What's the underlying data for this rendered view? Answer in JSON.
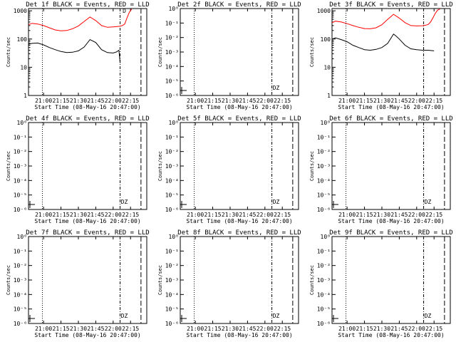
{
  "figure": {
    "colors": {
      "events": "#000000",
      "lld": "#ff0000",
      "axes": "#000000",
      "background": "#ffffff"
    }
  },
  "chart_data": [
    {
      "type": "line",
      "title": "Det 1f BLACK = Events, RED = LLD",
      "xlabel": "Start Time (08-May-16 20:47:00)",
      "ylabel": "Counts/sec",
      "x_ticks": [
        "21:00",
        "21:15",
        "21:30",
        "21:45",
        "22:00",
        "22:15"
      ],
      "y_scale": "log",
      "ylim": [
        1,
        1200
      ],
      "y_ticks": [
        "1",
        "10",
        "100",
        "1000"
      ],
      "xlim": [
        "20:47",
        "22:29"
      ],
      "grid": false,
      "marker_label": "D",
      "series": [
        {
          "name": "LLD",
          "color": "#ff0000",
          "x": [
            "20:47",
            "20:50",
            "20:55",
            "21:00",
            "21:05",
            "21:10",
            "21:15",
            "21:20",
            "21:25",
            "21:30",
            "21:35",
            "21:40",
            "21:45",
            "21:50",
            "21:55",
            "22:00",
            "22:05",
            "22:08",
            "22:10",
            "22:12",
            "22:14",
            "22:16"
          ],
          "y": [
            320,
            360,
            340,
            300,
            250,
            210,
            195,
            200,
            230,
            290,
            420,
            600,
            450,
            300,
            260,
            270,
            280,
            300,
            340,
            560,
            900,
            1150
          ]
        },
        {
          "name": "Events",
          "color": "#000000",
          "x": [
            "20:47",
            "20:50",
            "20:55",
            "21:00",
            "21:05",
            "21:10",
            "21:15",
            "21:20",
            "21:25",
            "21:30",
            "21:35",
            "21:40",
            "21:45",
            "21:50",
            "21:55",
            "22:00",
            "22:03",
            "22:05",
            "22:06"
          ],
          "y": [
            65,
            70,
            72,
            62,
            50,
            42,
            36,
            33,
            34,
            38,
            52,
            95,
            75,
            42,
            33,
            32,
            35,
            40,
            14
          ]
        }
      ]
    },
    {
      "type": "line",
      "title": "Det 2f BLACK = Events, RED = LLD",
      "xlabel": "Start Time (08-May-16 20:47:00)",
      "ylabel": "Counts/sec",
      "x_ticks": [
        "21:00",
        "21:15",
        "21:30",
        "21:45",
        "22:00",
        "22:15"
      ],
      "y_scale": "log",
      "y_ticks": [
        "10⁻⁶",
        "10⁻⁵",
        "10⁻⁴",
        "10⁻³",
        "10⁻²",
        "10⁻¹",
        "10⁰"
      ],
      "xlim": [
        "20:47",
        "22:29"
      ],
      "grid": false,
      "marker_label": "DZ",
      "series": []
    },
    {
      "type": "line",
      "title": "Det 3f BLACK = Events, RED = LLD",
      "xlabel": "Start Time (08-May-16 20:47:00)",
      "ylabel": "Counts/sec",
      "x_ticks": [
        "21:00",
        "21:15",
        "21:30",
        "21:45",
        "22:00",
        "22:15"
      ],
      "y_scale": "log",
      "ylim": [
        1,
        1200
      ],
      "y_ticks": [
        "1",
        "10",
        "100",
        "1000"
      ],
      "xlim": [
        "20:47",
        "22:29"
      ],
      "grid": false,
      "marker_label": "",
      "series": [
        {
          "name": "LLD",
          "color": "#ff0000",
          "x": [
            "20:47",
            "20:50",
            "20:55",
            "21:00",
            "21:05",
            "21:10",
            "21:15",
            "21:20",
            "21:25",
            "21:30",
            "21:35",
            "21:40",
            "21:45",
            "21:50",
            "21:55",
            "22:00",
            "22:05",
            "22:08",
            "22:10",
            "22:12",
            "22:14",
            "22:16",
            "22:18",
            "22:20"
          ],
          "y": [
            380,
            430,
            400,
            350,
            300,
            260,
            235,
            230,
            250,
            320,
            500,
            750,
            550,
            380,
            300,
            290,
            295,
            310,
            330,
            400,
            560,
            800,
            1050,
            1150
          ]
        },
        {
          "name": "Events",
          "color": "#000000",
          "x": [
            "20:47",
            "20:50",
            "20:55",
            "21:00",
            "21:05",
            "21:10",
            "21:15",
            "21:20",
            "21:25",
            "21:30",
            "21:35",
            "21:38",
            "21:40",
            "21:42",
            "21:45",
            "21:50",
            "21:55",
            "22:00",
            "22:05",
            "22:10",
            "22:15"
          ],
          "y": [
            100,
            110,
            95,
            80,
            60,
            50,
            42,
            40,
            43,
            50,
            70,
            110,
            150,
            130,
            100,
            60,
            45,
            42,
            40,
            40,
            38
          ]
        }
      ]
    },
    {
      "type": "line",
      "title": "Det 4f BLACK = Events, RED = LLD",
      "xlabel": "Start Time (08-May-16 20:47:00)",
      "ylabel": "Counts/sec",
      "x_ticks": [
        "21:00",
        "21:15",
        "21:30",
        "21:45",
        "22:00",
        "22:15"
      ],
      "y_scale": "log",
      "y_ticks": [
        "10⁻⁶",
        "10⁻⁵",
        "10⁻⁴",
        "10⁻³",
        "10⁻²",
        "10⁻¹",
        "10⁰"
      ],
      "xlim": [
        "20:47",
        "22:29"
      ],
      "grid": false,
      "marker_label": "DZ",
      "series": []
    },
    {
      "type": "line",
      "title": "Det 5f BLACK = Events, RED = LLD",
      "xlabel": "Start Time (08-May-16 20:47:00)",
      "ylabel": "Counts/sec",
      "x_ticks": [
        "21:00",
        "21:15",
        "21:30",
        "21:45",
        "22:00",
        "22:15"
      ],
      "y_scale": "log",
      "y_ticks": [
        "10⁻⁶",
        "10⁻⁵",
        "10⁻⁴",
        "10⁻³",
        "10⁻²",
        "10⁻¹",
        "10⁰"
      ],
      "xlim": [
        "20:47",
        "22:29"
      ],
      "grid": false,
      "marker_label": "DZ",
      "series": []
    },
    {
      "type": "line",
      "title": "Det 6f BLACK = Events, RED = LLD",
      "xlabel": "Start Time (08-May-16 20:47:00)",
      "ylabel": "Counts/sec",
      "x_ticks": [
        "21:00",
        "21:15",
        "21:30",
        "21:45",
        "22:00",
        "22:15"
      ],
      "y_scale": "log",
      "y_ticks": [
        "10⁻⁶",
        "10⁻⁵",
        "10⁻⁴",
        "10⁻³",
        "10⁻²",
        "10⁻¹",
        "10⁰"
      ],
      "xlim": [
        "20:47",
        "22:29"
      ],
      "grid": false,
      "marker_label": "DZ",
      "series": []
    },
    {
      "type": "line",
      "title": "Det 7f BLACK = Events, RED = LLD",
      "xlabel": "Start Time (08-May-16 20:47:00)",
      "ylabel": "Counts/sec",
      "x_ticks": [
        "21:00",
        "21:15",
        "21:30",
        "21:45",
        "22:00",
        "22:15"
      ],
      "y_scale": "log",
      "y_ticks": [
        "10⁻⁶",
        "10⁻⁵",
        "10⁻⁴",
        "10⁻³",
        "10⁻²",
        "10⁻¹",
        "10⁰"
      ],
      "xlim": [
        "20:47",
        "22:29"
      ],
      "grid": false,
      "marker_label": "DZ",
      "series": []
    },
    {
      "type": "line",
      "title": "Det 8f BLACK = Events, RED = LLD",
      "xlabel": "Start Time (08-May-16 20:47:00)",
      "ylabel": "Counts/sec",
      "x_ticks": [
        "21:00",
        "21:15",
        "21:30",
        "21:45",
        "22:00",
        "22:15"
      ],
      "y_scale": "log",
      "y_ticks": [
        "10⁻⁶",
        "10⁻⁵",
        "10⁻⁴",
        "10⁻³",
        "10⁻²",
        "10⁻¹",
        "10⁰"
      ],
      "xlim": [
        "20:47",
        "22:29"
      ],
      "grid": false,
      "marker_label": "DZ",
      "series": []
    },
    {
      "type": "line",
      "title": "Det 9f BLACK = Events, RED = LLD",
      "xlabel": "Start Time (08-May-16 20:47:00)",
      "ylabel": "Counts/sec",
      "x_ticks": [
        "21:00",
        "21:15",
        "21:30",
        "21:45",
        "22:00",
        "22:15"
      ],
      "y_scale": "log",
      "y_ticks": [
        "10⁻⁶",
        "10⁻⁵",
        "10⁻⁴",
        "10⁻³",
        "10⁻²",
        "10⁻¹",
        "10⁰"
      ],
      "xlim": [
        "20:47",
        "22:29"
      ],
      "grid": false,
      "marker_label": "DZ",
      "series": []
    }
  ]
}
